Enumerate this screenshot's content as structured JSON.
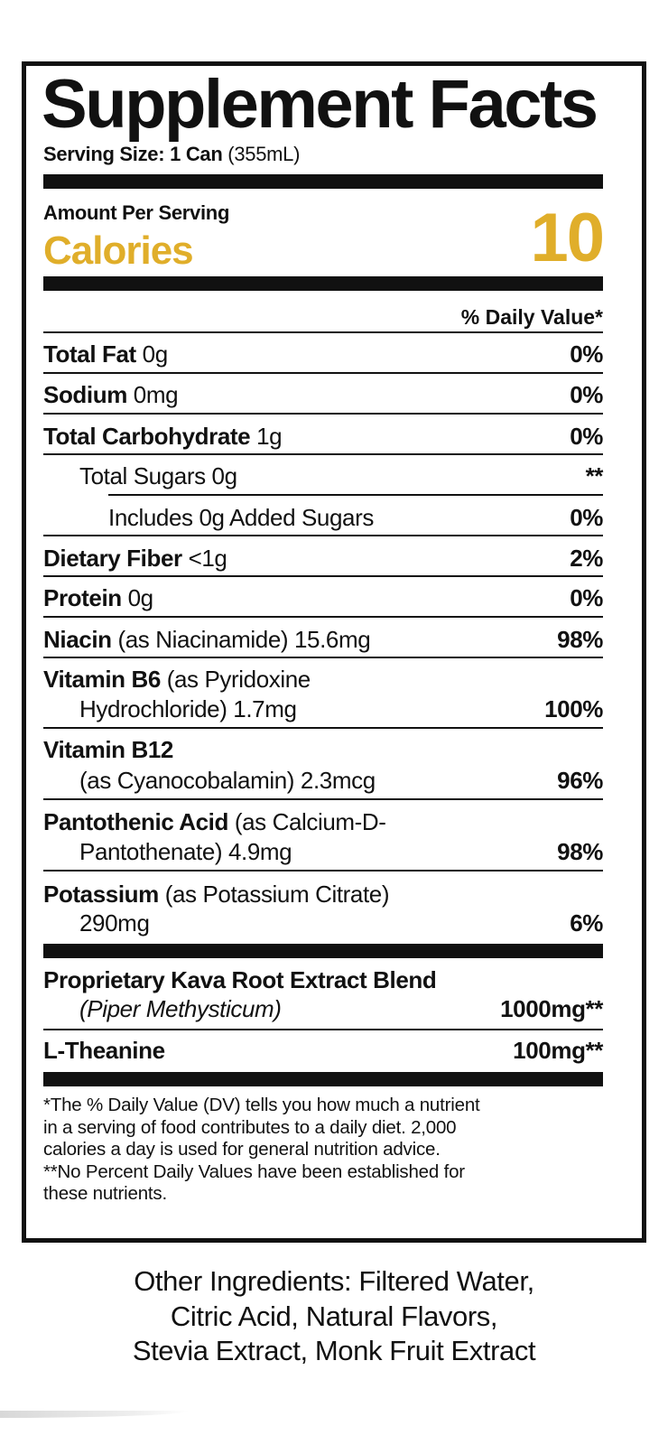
{
  "label": {
    "title": "Supplement Facts",
    "serving_label": "Serving Size: 1 Can",
    "serving_detail": "(355mL)",
    "amount_per_serving": "Amount Per Serving",
    "calories_label": "Calories",
    "calories_value": "10",
    "accent_color": "#E0AE2A",
    "dv_header": "% Daily Value*",
    "rows": [
      {
        "name": "Total Fat",
        "detail": "0g",
        "dv": "0%"
      },
      {
        "name": "Sodium",
        "detail": "0mg",
        "dv": "0%"
      },
      {
        "name": "Total Carbohydrate",
        "detail": "1g",
        "dv": "0%"
      },
      {
        "name": "",
        "detail": "Total Sugars 0g",
        "dv": "**"
      },
      {
        "name": "",
        "detail": "Includes 0g Added Sugars",
        "dv": "0%"
      },
      {
        "name": "Dietary Fiber",
        "detail": "<1g",
        "dv": "2%"
      },
      {
        "name": "Protein",
        "detail": "0g",
        "dv": "0%"
      },
      {
        "name": "Niacin",
        "detail": "(as Niacinamide) 15.6mg",
        "dv": "98%"
      },
      {
        "name": "Vitamin B6",
        "detail": "(as Pyridoxine",
        "detail2": "Hydrochloride) 1.7mg",
        "dv": "100%"
      },
      {
        "name": "Vitamin B12",
        "detail": "",
        "detail2": "(as Cyanocobalamin) 2.3mcg",
        "dv": "96%"
      },
      {
        "name": "Pantothenic Acid",
        "detail": "(as Calcium-D-",
        "detail2": "Pantothenate) 4.9mg",
        "dv": "98%"
      },
      {
        "name": "Potassium",
        "detail": "(as Potassium Citrate)",
        "detail2": "290mg",
        "dv": "6%"
      }
    ],
    "blend": {
      "name": "Proprietary Kava Root Extract Blend",
      "detail": "(Piper Methysticum)",
      "amount": "1000mg**"
    },
    "theanine": {
      "name": "L-Theanine",
      "amount": "100mg**"
    },
    "footnote_lines": [
      "*The % Daily Value (DV) tells you how much a nutrient",
      "in a serving of food contributes to a daily diet. 2,000",
      "calories a day is used for general nutrition advice.",
      "**No Percent Daily Values have been established for",
      "these nutrients."
    ]
  },
  "other_ingredients_lines": [
    "Other Ingredients: Filtered Water,",
    "Citric Acid, Natural Flavors,",
    "Stevia Extract, Monk Fruit Extract"
  ]
}
